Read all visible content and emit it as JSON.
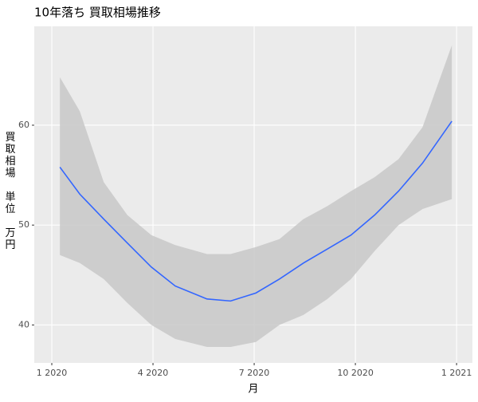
{
  "chart_data": {
    "type": "smooth",
    "title": "10年落ち 買取相場推移",
    "x_label": "月",
    "y_label": "買取相場 単位 万円",
    "x": [
      1.24,
      1.83,
      2.54,
      3.24,
      3.95,
      4.66,
      5.6,
      6.3,
      7.05,
      7.75,
      8.46,
      9.17,
      9.87,
      10.57,
      11.28,
      11.99,
      12.86
    ],
    "line": {
      "color": "#3366ff",
      "values": [
        55.8,
        53.1,
        50.6,
        48.2,
        45.8,
        43.9,
        42.6,
        42.4,
        43.2,
        44.6,
        46.2,
        47.6,
        49.0,
        51.0,
        53.4,
        56.2,
        60.4
      ]
    },
    "band": {
      "color": "#c8c8c8",
      "upper": [
        64.8,
        61.4,
        54.3,
        51.0,
        49.0,
        48.0,
        47.1,
        47.1,
        47.8,
        48.6,
        50.6,
        51.9,
        53.4,
        54.8,
        56.6,
        59.8,
        68.0
      ],
      "lower": [
        47.0,
        46.2,
        44.6,
        42.2,
        40.0,
        38.6,
        37.8,
        37.8,
        38.3,
        40.0,
        41.0,
        42.6,
        44.6,
        47.4,
        50.0,
        51.6,
        52.6
      ]
    },
    "xlim": [
      0.48,
      13.47
    ],
    "xticks": [
      {
        "value": 1,
        "label": "1 2020"
      },
      {
        "value": 4,
        "label": "4 2020"
      },
      {
        "value": 7,
        "label": "7 2020"
      },
      {
        "value": 10,
        "label": "10 2020"
      },
      {
        "value": 13,
        "label": "1 2021"
      }
    ],
    "ylim": [
      36.2,
      69.9
    ],
    "yticks": [
      40,
      50,
      60
    ],
    "grid": true
  }
}
